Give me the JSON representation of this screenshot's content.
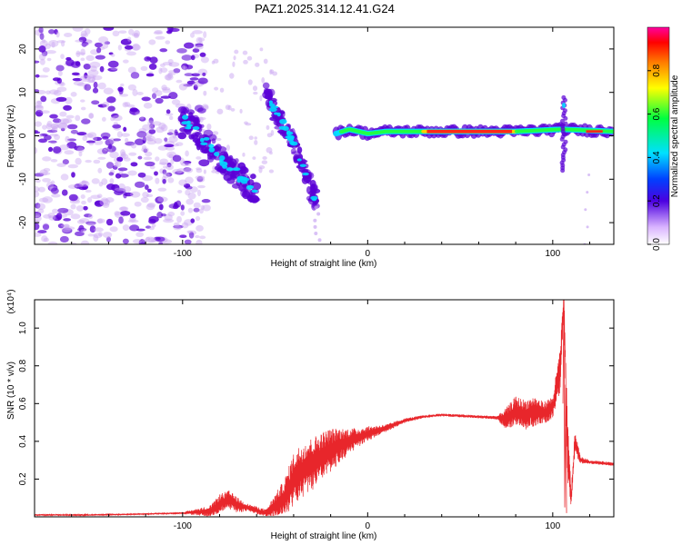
{
  "title": "PAZ1.2025.314.12.41.G24",
  "colors": {
    "snr_line": "#e8262b",
    "spec_blob": "#5a00d6",
    "spec_faint": "#c9a6f2",
    "ridge": "#ff2a1a"
  },
  "chart_data": [
    {
      "type": "heatmap",
      "name": "spectrogram",
      "xlabel": "Height of straight line (km)",
      "ylabel": "Frequency (Hz)",
      "xlim": [
        -180,
        133
      ],
      "ylim": [
        -25,
        25
      ],
      "xticks": [
        -100,
        0,
        100
      ],
      "yticks": [
        -20,
        -10,
        0,
        10,
        20
      ],
      "colorbar": {
        "label": "Normalized spectral amplitude",
        "range": [
          0,
          1
        ],
        "ticks": [
          "0.0",
          "0.2",
          "0.4",
          "0.6",
          "0.8"
        ],
        "tick_values": [
          0.0,
          0.2,
          0.4,
          0.6,
          0.8
        ]
      },
      "features": {
        "main_ridge": [
          [
            -17,
            0.5
          ],
          [
            -10,
            1.5
          ],
          [
            0,
            0.5
          ],
          [
            10,
            1
          ],
          [
            40,
            1
          ],
          [
            80,
            1
          ],
          [
            105,
            1.5
          ],
          [
            133,
            1
          ]
        ],
        "chirp_a": [
          [
            -100,
            4
          ],
          [
            -80,
            -5
          ],
          [
            -60,
            -13
          ]
        ],
        "chirp_b": [
          [
            -55,
            10
          ],
          [
            -40,
            -2
          ],
          [
            -28,
            -15
          ]
        ],
        "spike_x": 106,
        "noise_region": [
          -180,
          -95
        ]
      }
    },
    {
      "type": "line",
      "name": "snr",
      "xlabel": "Height of straight line (km)",
      "ylabel": "SNR (10 * v/v)",
      "y_multiplier": "(x10⁴)",
      "xlim": [
        -180,
        133
      ],
      "ylim": [
        0,
        1.15
      ],
      "xticks": [
        -100,
        0,
        100
      ],
      "yticks": [
        0.2,
        0.4,
        0.6,
        0.8,
        1.0
      ],
      "ytick_labels": [
        "0.2",
        "0.4",
        "0.6",
        "0.8",
        "1.0"
      ],
      "x": [
        -180,
        -150,
        -120,
        -100,
        -85,
        -80,
        -75,
        -70,
        -65,
        -55,
        -45,
        -40,
        -35,
        -30,
        -25,
        -20,
        -15,
        -10,
        -5,
        0,
        10,
        20,
        30,
        40,
        50,
        60,
        70,
        75,
        80,
        85,
        90,
        95,
        100,
        104,
        106,
        108,
        110,
        112,
        115,
        120,
        133
      ],
      "values": [
        0.01,
        0.01,
        0.015,
        0.02,
        0.03,
        0.07,
        0.09,
        0.06,
        0.05,
        0.02,
        0.1,
        0.2,
        0.25,
        0.28,
        0.32,
        0.35,
        0.38,
        0.4,
        0.42,
        0.44,
        0.47,
        0.51,
        0.53,
        0.54,
        0.535,
        0.53,
        0.525,
        0.52,
        0.56,
        0.54,
        0.56,
        0.55,
        0.58,
        0.78,
        1.15,
        0.35,
        0.1,
        0.4,
        0.3,
        0.29,
        0.28
      ],
      "noise_amp": [
        0.004,
        0.004,
        0.004,
        0.005,
        0.03,
        0.05,
        0.05,
        0.04,
        0.02,
        0.02,
        0.1,
        0.14,
        0.15,
        0.14,
        0.13,
        0.12,
        0.09,
        0.07,
        0.05,
        0.04,
        0.02,
        0.012,
        0.008,
        0.008,
        0.008,
        0.008,
        0.01,
        0.06,
        0.08,
        0.08,
        0.08,
        0.06,
        0.06,
        0.12,
        0.05,
        0.18,
        0.05,
        0.06,
        0.02,
        0.01,
        0.01
      ]
    }
  ]
}
